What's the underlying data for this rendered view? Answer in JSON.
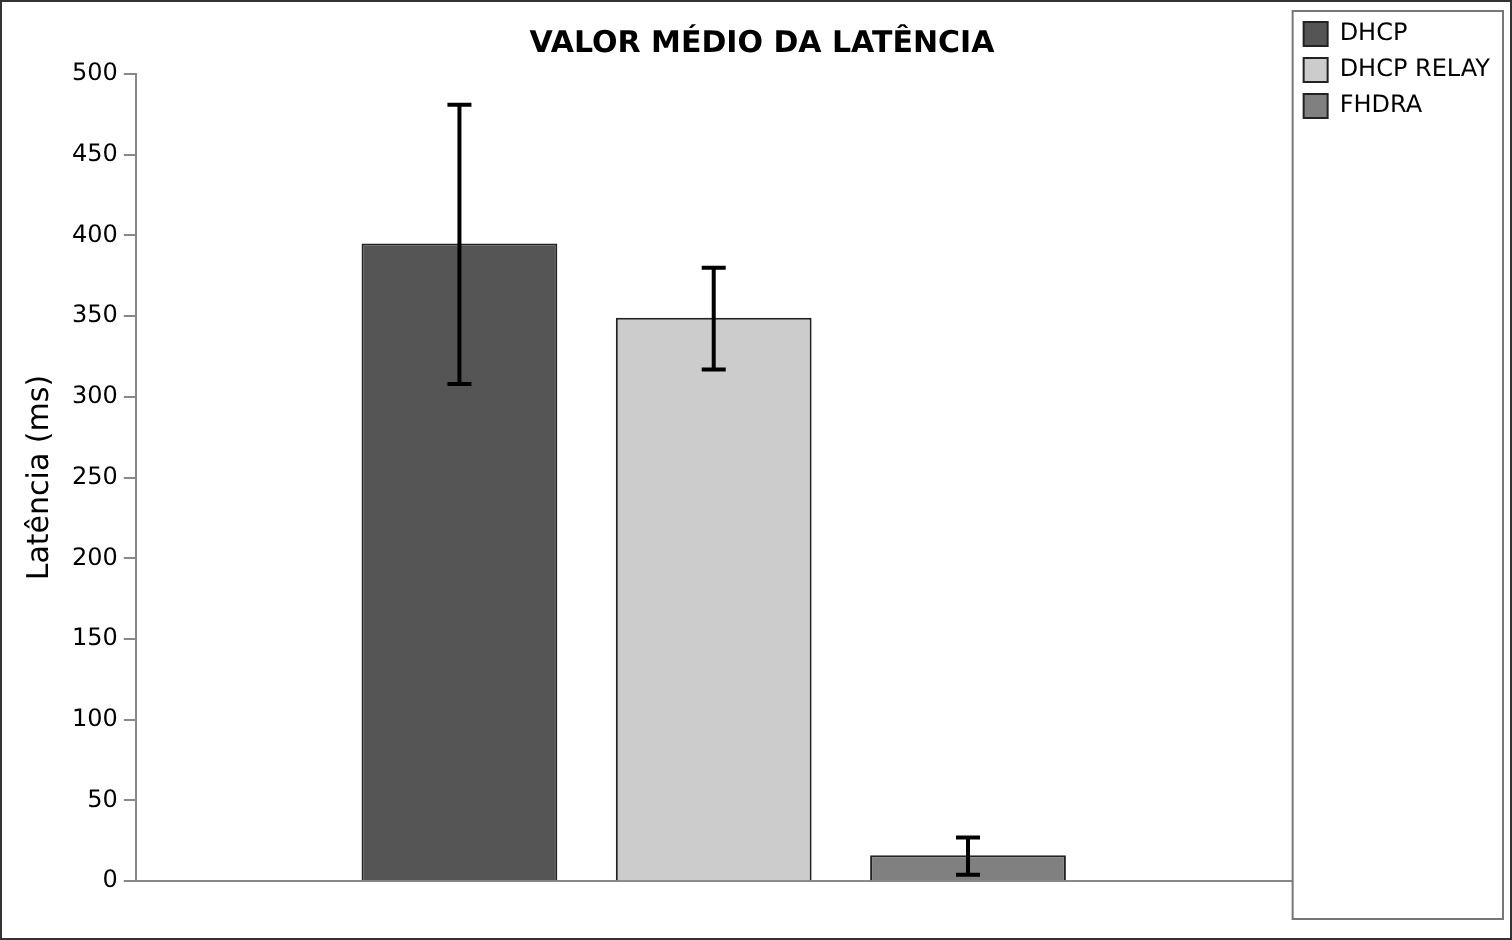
{
  "chart_data": {
    "type": "bar",
    "title": "VALOR MÉDIO DA LATÊNCIA",
    "ylabel": "Latência (ms)",
    "categories": [
      null
    ],
    "series": [
      {
        "name": "DHCP",
        "color": "#555555",
        "values": [
          395
        ],
        "errors": [
          [
            308,
            481
          ]
        ]
      },
      {
        "name": "DHCP RELAY",
        "color": "#cccccc",
        "values": [
          349
        ],
        "errors": [
          [
            317,
            380
          ]
        ]
      },
      {
        "name": "FHDRA",
        "color": "#808080",
        "values": [
          16
        ],
        "errors": [
          [
            4,
            27
          ]
        ]
      }
    ],
    "ylim": [
      0,
      500
    ],
    "yticks": [
      0,
      50,
      100,
      150,
      200,
      250,
      300,
      350,
      400,
      450,
      500
    ],
    "grid": false,
    "legend": "top right"
  }
}
